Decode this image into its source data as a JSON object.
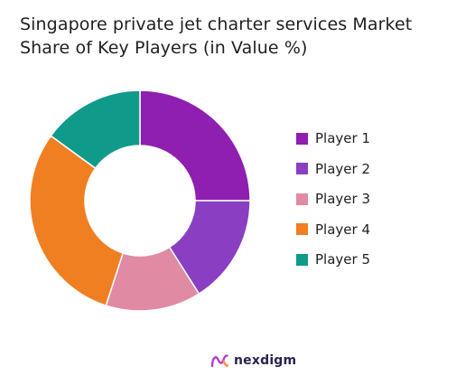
{
  "chart_data": {
    "type": "pie",
    "title": "Singapore private jet charter services Market Share of Key Players (in Value %)",
    "donut": true,
    "categories": [
      "Player 1",
      "Player 2",
      "Player 3",
      "Player 4",
      "Player 5"
    ],
    "values": [
      25,
      16,
      14,
      30,
      15
    ],
    "colors": [
      "#8e1fb0",
      "#8a3fc2",
      "#e08aa3",
      "#f07f22",
      "#109a8a"
    ],
    "legend": {
      "position": "right",
      "labels": [
        "Player 1",
        "Player 2",
        "Player 3",
        "Player 4",
        "Player 5"
      ]
    }
  },
  "brand": {
    "name": "nexdigm",
    "color": "#2b2250",
    "icon": "nexdigm-logo-icon"
  }
}
